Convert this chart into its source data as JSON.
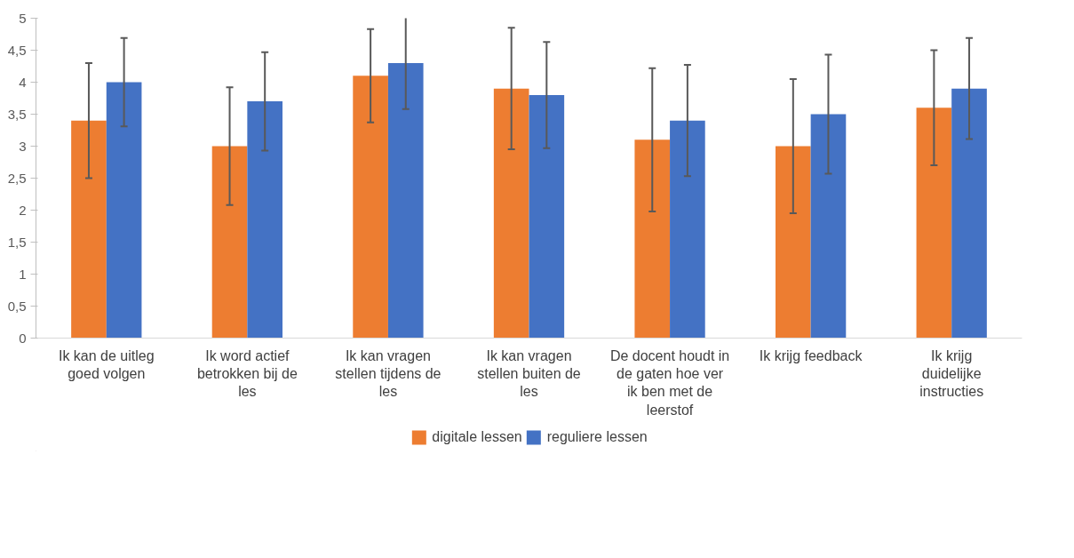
{
  "chart_data": {
    "type": "bar",
    "categories": [
      "Ik kan de uitleg goed volgen",
      "Ik word actief betrokken bij de les",
      "Ik kan vragen stellen tijdens de les",
      "Ik kan vragen stellen buiten de les",
      "De docent houdt in de gaten hoe ver ik ben met de leerstof",
      "Ik krijg feedback",
      "Ik krijg duidelijke instructies"
    ],
    "series": [
      {
        "name": "digitale lessen",
        "color": "#ed7d31",
        "values": [
          3.4,
          3.0,
          4.1,
          3.9,
          3.1,
          3.0,
          3.6
        ],
        "errors": [
          0.9,
          0.92,
          0.73,
          0.95,
          1.12,
          1.05,
          0.9
        ]
      },
      {
        "name": "reguliere lessen",
        "color": "#4472c4",
        "values": [
          4.0,
          3.7,
          4.3,
          3.8,
          3.4,
          3.5,
          3.9
        ],
        "errors": [
          0.69,
          0.77,
          0.72,
          0.83,
          0.87,
          0.93,
          0.79
        ]
      }
    ],
    "ylim": [
      0,
      5
    ],
    "yticks": [
      0,
      {
        "value": 0.5,
        "label": "0,5"
      },
      1,
      {
        "value": 1.5,
        "label": "1,5"
      },
      2,
      {
        "value": 2.5,
        "label": "2,5"
      },
      3,
      {
        "value": 3.5,
        "label": "3,5"
      },
      4,
      {
        "value": 4.5,
        "label": "4,5"
      },
      5
    ],
    "grid": false,
    "legend": "bottom"
  }
}
